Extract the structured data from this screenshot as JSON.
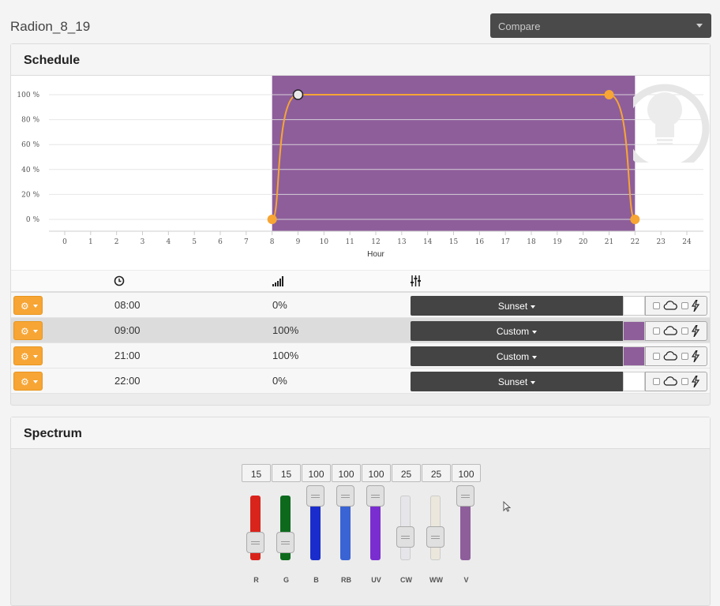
{
  "header": {
    "title": "Radion_8_19",
    "compare_label": "Compare"
  },
  "schedule": {
    "title": "Schedule",
    "columns": {
      "time_icon": "clock-icon",
      "intensity_icon": "signal-icon",
      "settings_icon": "sliders-icon"
    },
    "rows": [
      {
        "time": "08:00",
        "intensity": "0%",
        "mode": "Sunset",
        "color": "#ffffff"
      },
      {
        "time": "09:00",
        "intensity": "100%",
        "mode": "Custom",
        "color": "#8e5e9b"
      },
      {
        "time": "21:00",
        "intensity": "100%",
        "mode": "Custom",
        "color": "#8e5e9b"
      },
      {
        "time": "22:00",
        "intensity": "0%",
        "mode": "Sunset",
        "color": "#ffffff"
      }
    ]
  },
  "chart_data": {
    "type": "line",
    "xlabel": "Hour",
    "xlim": [
      0,
      24
    ],
    "ylim": [
      0,
      100
    ],
    "x_ticks": [
      "0",
      "1",
      "2",
      "3",
      "4",
      "5",
      "6",
      "7",
      "8",
      "9",
      "10",
      "11",
      "12",
      "13",
      "14",
      "15",
      "16",
      "17",
      "18",
      "19",
      "20",
      "21",
      "22",
      "23",
      "24"
    ],
    "y_ticks": [
      "0 %",
      "20 %",
      "40 %",
      "60 %",
      "80 %",
      "100 %"
    ],
    "series": [
      {
        "x": [
          8,
          9,
          21,
          22
        ],
        "y": [
          0,
          100,
          100,
          0
        ]
      }
    ],
    "active_range": [
      8,
      22
    ],
    "selected_point": 9,
    "colors": {
      "line": "#f7a534",
      "band": "#8e5e9b",
      "point": "#f7a534"
    },
    "grid": true
  },
  "spectrum": {
    "title": "Spectrum",
    "channels": [
      {
        "name": "R",
        "value": "15",
        "level": 15,
        "color": "#d9241c"
      },
      {
        "name": "G",
        "value": "15",
        "level": 15,
        "color": "#0d6a1d"
      },
      {
        "name": "B",
        "value": "100",
        "level": 100,
        "color": "#1a2dcc"
      },
      {
        "name": "RB",
        "value": "100",
        "level": 100,
        "color": "#3a63d4"
      },
      {
        "name": "UV",
        "value": "100",
        "level": 100,
        "color": "#7a2ed0"
      },
      {
        "name": "CW",
        "value": "25",
        "level": 25,
        "color": "#e6e6ea"
      },
      {
        "name": "WW",
        "value": "25",
        "level": 25,
        "color": "#ebe7dc"
      },
      {
        "name": "V",
        "value": "100",
        "level": 100,
        "color": "#8e5e9b"
      }
    ]
  }
}
